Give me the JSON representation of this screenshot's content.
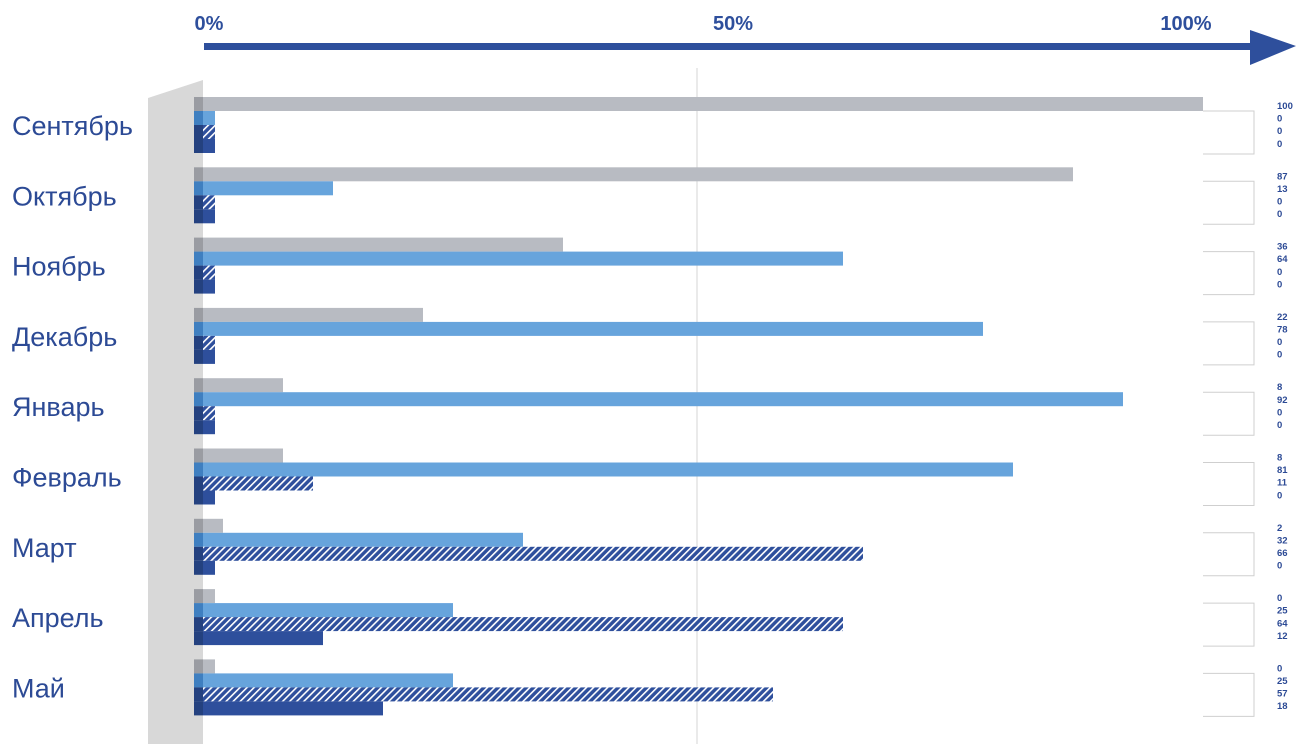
{
  "chart_data": {
    "type": "bar",
    "orientation": "horizontal",
    "x_axis": {
      "ticks": [
        "0%",
        "50%",
        "100%"
      ],
      "range": [
        0,
        100
      ]
    },
    "categories": [
      "Сентябрь",
      "Октябрь",
      "Ноябрь",
      "Декабрь",
      "Январь",
      "Февраль",
      "Март",
      "Апрель",
      "Май"
    ],
    "series": [
      {
        "values": [
          100,
          87,
          36,
          22,
          8,
          8,
          2,
          0,
          0
        ],
        "color": "#b8bbc2",
        "pattern": "solid"
      },
      {
        "values": [
          0,
          13,
          64,
          78,
          92,
          81,
          32,
          25,
          25
        ],
        "color": "#67a4dc",
        "pattern": "solid"
      },
      {
        "values": [
          0,
          0,
          0,
          0,
          0,
          11,
          66,
          64,
          57
        ],
        "color": "#2e4f9c",
        "pattern": "hatched"
      },
      {
        "values": [
          0,
          0,
          0,
          0,
          0,
          0,
          0,
          12,
          18
        ],
        "color": "#2e4f9c",
        "pattern": "solid"
      }
    ],
    "value_labels": [
      [
        "100",
        "0",
        "0",
        "0"
      ],
      [
        "87",
        "13",
        "0",
        "0"
      ],
      [
        "36",
        "64",
        "0",
        "0"
      ],
      [
        "22",
        "78",
        "0",
        "0"
      ],
      [
        "8",
        "92",
        "0",
        "0"
      ],
      [
        "8",
        "81",
        "11",
        "0"
      ],
      [
        "2",
        "32",
        "66",
        "0"
      ],
      [
        "0",
        "25",
        "64",
        "12"
      ],
      [
        "0",
        "25",
        "57",
        "18"
      ]
    ],
    "grid": "vertical line at 50%",
    "legend": "none"
  }
}
